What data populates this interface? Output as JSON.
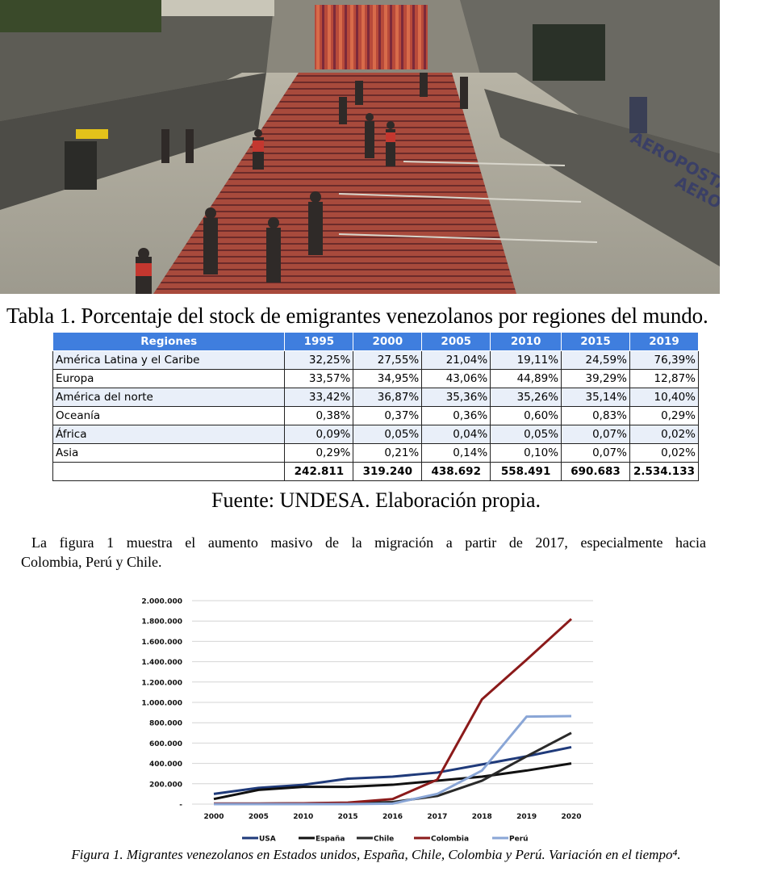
{
  "photo": {
    "description_icon": "airport-terminal-photo-icon",
    "visible_signage": [
      "AEROPOSTAL",
      "AERO"
    ]
  },
  "table": {
    "title": "Tabla 1. Porcentaje del stock de emigrantes venezolanos por regiones del mundo.",
    "headers": [
      "Regiones",
      "1995",
      "2000",
      "2005",
      "2010",
      "2015",
      "2019"
    ],
    "rows": [
      {
        "region": "América Latina y el Caribe",
        "values": [
          "32,25%",
          "27,55%",
          "21,04%",
          "19,11%",
          "24,59%",
          "76,39%"
        ]
      },
      {
        "region": "Europa",
        "values": [
          "33,57%",
          "34,95%",
          "43,06%",
          "44,89%",
          "39,29%",
          "12,87%"
        ]
      },
      {
        "region": "América del norte",
        "values": [
          "33,42%",
          "36,87%",
          "35,36%",
          "35,26%",
          "35,14%",
          "10,40%"
        ]
      },
      {
        "region": "Oceanía",
        "values": [
          "0,38%",
          "0,37%",
          "0,36%",
          "0,60%",
          "0,83%",
          "0,29%"
        ]
      },
      {
        "region": "África",
        "values": [
          "0,09%",
          "0,05%",
          "0,04%",
          "0,05%",
          "0,07%",
          "0,02%"
        ]
      },
      {
        "region": "Asia",
        "values": [
          "0,29%",
          "0,21%",
          "0,14%",
          "0,10%",
          "0,07%",
          "0,02%"
        ]
      }
    ],
    "totals": [
      "242.811",
      "319.240",
      "438.692",
      "558.491",
      "690.683",
      "2.534.133"
    ]
  },
  "source": "Fuente: UNDESA. Elaboración propia.",
  "paragraph": {
    "line1": "La figura 1 muestra el aumento masivo de la migración a partir de 2017, especialmente hacia",
    "line2": "Colombia, Perú y Chile."
  },
  "chart_data": {
    "type": "line",
    "title": "",
    "xlabel": "",
    "ylabel": "",
    "categories": [
      "2000",
      "2005",
      "2010",
      "2015",
      "2016",
      "2017",
      "2018",
      "2019",
      "2020"
    ],
    "ylim": [
      0,
      2000000
    ],
    "yticks": [
      0,
      200000,
      400000,
      600000,
      800000,
      1000000,
      1200000,
      1400000,
      1600000,
      1800000,
      2000000
    ],
    "ytick_labels": [
      "-",
      "200.000",
      "400.000",
      "600.000",
      "800.000",
      "1.000.000",
      "1.200.000",
      "1.400.000",
      "1.600.000",
      "1.800.000",
      "2.000.000"
    ],
    "grid": true,
    "legend_position": "bottom",
    "series": [
      {
        "name": "USA",
        "color": "#1f3a7a",
        "values": [
          100000,
          160000,
          190000,
          250000,
          270000,
          310000,
          390000,
          470000,
          560000
        ]
      },
      {
        "name": "España",
        "color": "#111111",
        "values": [
          50000,
          140000,
          170000,
          170000,
          190000,
          230000,
          270000,
          330000,
          400000
        ]
      },
      {
        "name": "Chile",
        "color": "#2a2a2a",
        "values": [
          5000,
          5000,
          8000,
          10000,
          20000,
          80000,
          230000,
          470000,
          700000
        ]
      },
      {
        "name": "Colombia",
        "color": "#8b1a1a",
        "values": [
          5000,
          5000,
          8000,
          15000,
          50000,
          240000,
          1030000,
          1420000,
          1820000
        ]
      },
      {
        "name": "Perú",
        "color": "#8aa6d6",
        "values": [
          0,
          0,
          0,
          0,
          5000,
          100000,
          330000,
          860000,
          865000
        ]
      }
    ]
  },
  "caption": "Figura 1. Migrantes venezolanos en Estados unidos, España, Chile, Colombia y Perú. Variación en el tiempo⁴."
}
